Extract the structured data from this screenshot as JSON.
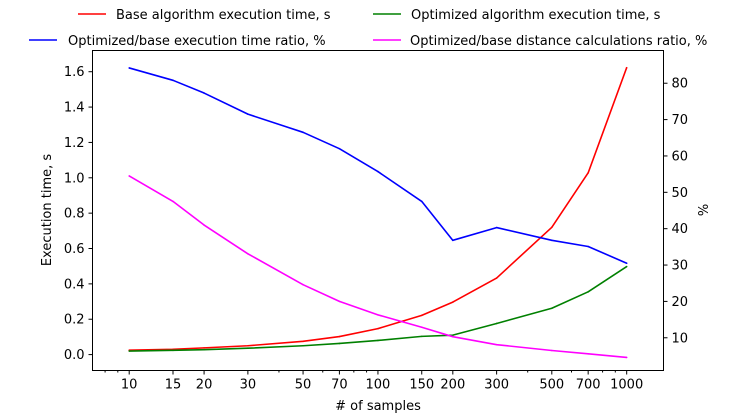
{
  "chart_data": {
    "type": "line",
    "x": [
      10,
      15,
      20,
      30,
      50,
      70,
      100,
      150,
      200,
      300,
      500,
      700,
      1000
    ],
    "xscale": "log",
    "xlabel": "# of samples",
    "xticks": [
      "10",
      "15",
      "20",
      "30",
      "50",
      "70",
      "100",
      "150",
      "200",
      "300",
      "500",
      "700",
      "1000"
    ],
    "ylabel_left": "Execution time, s",
    "ylim_left": [
      -0.09,
      1.72
    ],
    "yticks_left": [
      "0.0",
      "0.2",
      "0.4",
      "0.6",
      "0.8",
      "1.0",
      "1.2",
      "1.4",
      "1.6"
    ],
    "ylabel_right": "%",
    "ylim_right": [
      1,
      89
    ],
    "yticks_right": [
      "10",
      "20",
      "30",
      "40",
      "50",
      "60",
      "70",
      "80"
    ],
    "grid": false,
    "legend_position": "top, outside the plot, two columns",
    "series": [
      {
        "name": "Base algorithm execution time, s",
        "color": "#ff0000",
        "axis": "left",
        "values": [
          0.025,
          0.03,
          0.038,
          0.05,
          0.075,
          0.102,
          0.147,
          0.222,
          0.297,
          0.433,
          0.72,
          1.028,
          1.623
        ]
      },
      {
        "name": "Optimized algorithm execution time, s",
        "color": "#008000",
        "axis": "left",
        "values": [
          0.02,
          0.024,
          0.028,
          0.036,
          0.05,
          0.063,
          0.08,
          0.103,
          0.11,
          0.176,
          0.262,
          0.355,
          0.498
        ]
      },
      {
        "name": "Optimized/base execution time ratio, %",
        "color": "#0000ff",
        "axis": "right",
        "values": [
          84.2,
          80.8,
          77.3,
          71.5,
          66.5,
          62.0,
          55.7,
          47.5,
          36.8,
          40.3,
          36.8,
          35.1,
          30.5
        ]
      },
      {
        "name": "Optimized/base distance calculations ratio, %",
        "color": "#ff00ff",
        "axis": "right",
        "values": [
          54.5,
          47.5,
          41.0,
          33.1,
          24.6,
          20.0,
          16.3,
          12.9,
          10.3,
          8.1,
          6.5,
          5.6,
          4.6
        ]
      }
    ]
  }
}
